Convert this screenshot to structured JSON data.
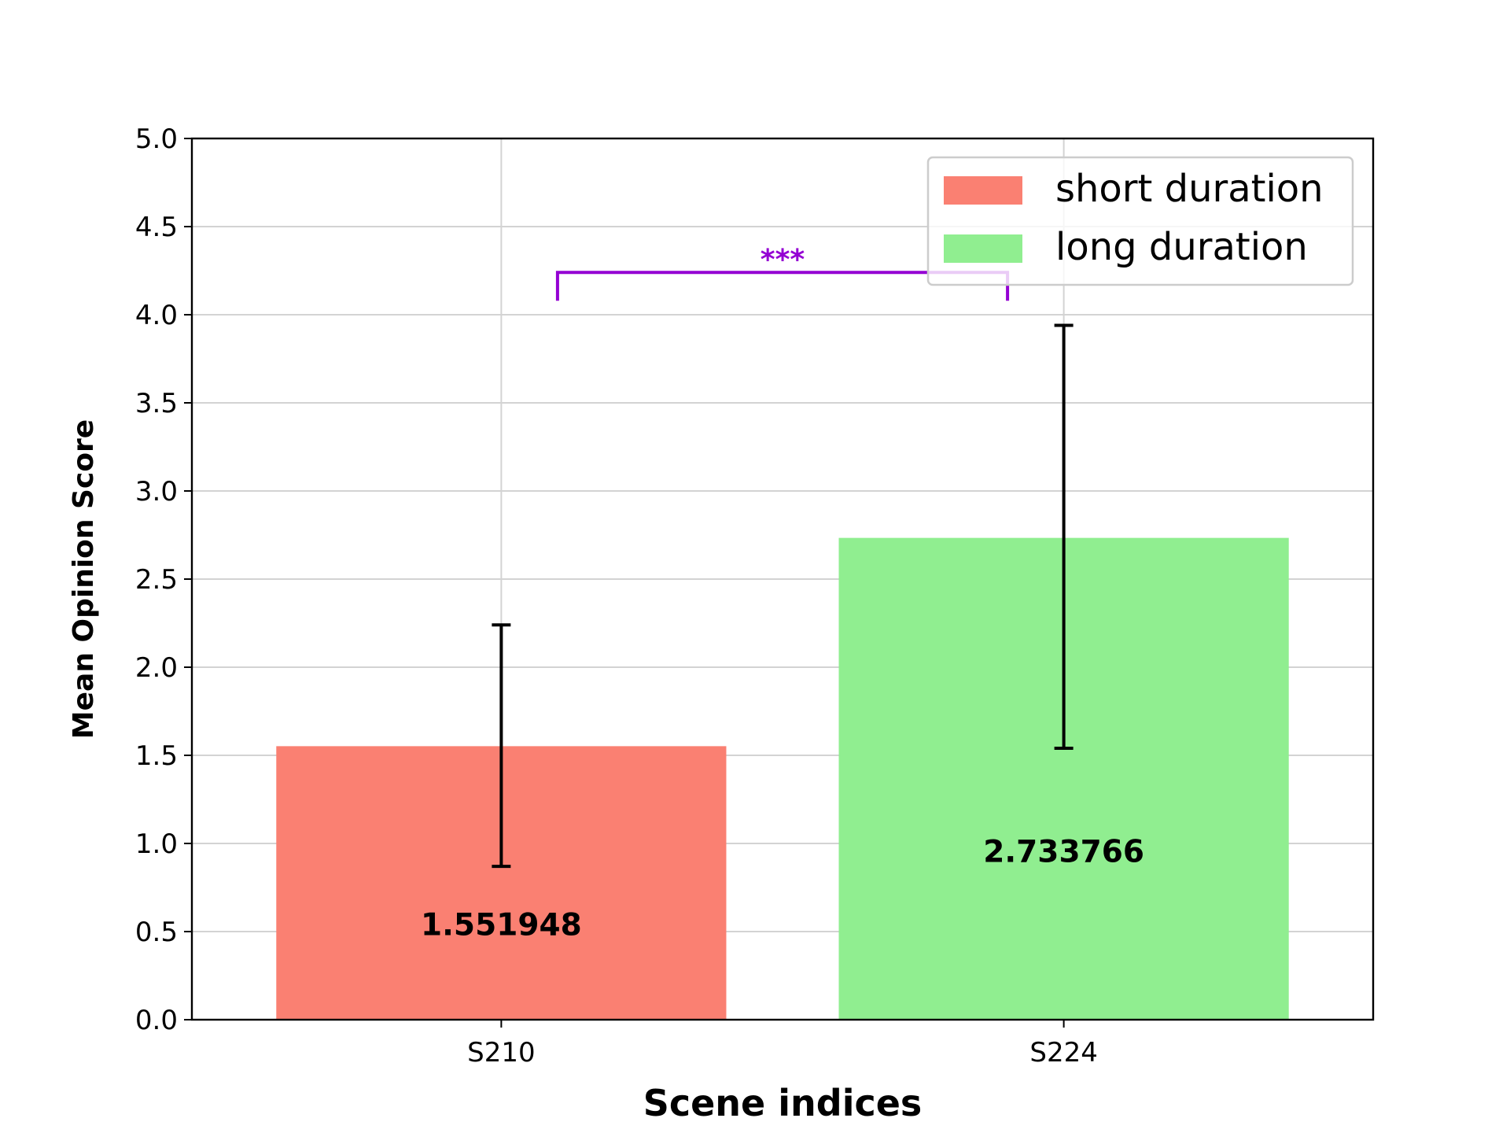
{
  "chart_data": {
    "type": "bar",
    "xlabel": "Scene indices",
    "ylabel": "Mean Opinion Score",
    "ylim": [
      0,
      5
    ],
    "yticks": [
      "0.0",
      "0.5",
      "1.0",
      "1.5",
      "2.0",
      "2.5",
      "3.0",
      "3.5",
      "4.0",
      "4.5",
      "5.0"
    ],
    "categories": [
      "S210",
      "S224"
    ],
    "series": [
      {
        "name": "short duration",
        "category": "S210",
        "value": 1.551948,
        "value_label": "1.551948",
        "error_low": 0.87,
        "error_high": 2.24,
        "color": "#fa8072"
      },
      {
        "name": "long duration",
        "category": "S224",
        "value": 2.733766,
        "value_label": "2.733766",
        "error_low": 1.54,
        "error_high": 3.94,
        "color": "#90ee90"
      }
    ],
    "significance": {
      "label": "***",
      "from": "S210",
      "to": "S224",
      "y": 4.24,
      "color": "#9400d3"
    },
    "grid": true,
    "legend_position": "top-right"
  }
}
